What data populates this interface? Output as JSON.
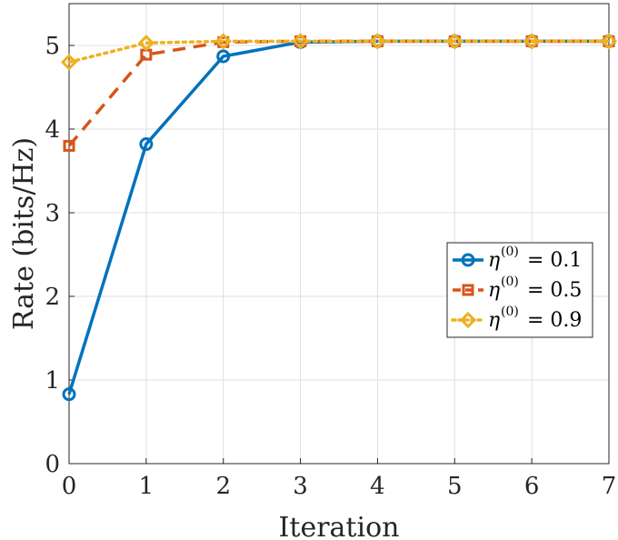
{
  "chart_data": {
    "type": "line",
    "title": "",
    "xlabel": "Iteration",
    "ylabel": "Rate (bits/Hz)",
    "x": [
      0,
      1,
      2,
      3,
      4,
      5,
      6,
      7
    ],
    "xlim": [
      0,
      7
    ],
    "ylim": [
      0,
      5.5
    ],
    "xticks": [
      0,
      1,
      2,
      3,
      4,
      5,
      6,
      7
    ],
    "yticks": [
      0,
      1,
      2,
      3,
      4,
      5
    ],
    "grid": true,
    "legend_position": "right",
    "series": [
      {
        "name": "η(0) = 0.1",
        "symbol": "η",
        "superscript": "(0)",
        "value_text": "= 0.1",
        "color": "#0072BD",
        "line_style": "solid",
        "marker": "circle",
        "values": [
          0.83,
          3.82,
          4.87,
          5.04,
          5.05,
          5.05,
          5.05,
          5.05
        ]
      },
      {
        "name": "η(0) = 0.5",
        "symbol": "η",
        "superscript": "(0)",
        "value_text": "= 0.5",
        "color": "#D95319",
        "line_style": "dashed",
        "marker": "square",
        "values": [
          3.8,
          4.89,
          5.04,
          5.05,
          5.05,
          5.05,
          5.05,
          5.05
        ]
      },
      {
        "name": "η(0) = 0.9",
        "symbol": "η",
        "superscript": "(0)",
        "value_text": "= 0.9",
        "color": "#EDB120",
        "line_style": "dotted",
        "marker": "diamond",
        "values": [
          4.8,
          5.03,
          5.05,
          5.05,
          5.05,
          5.05,
          5.05,
          5.05
        ]
      }
    ]
  }
}
